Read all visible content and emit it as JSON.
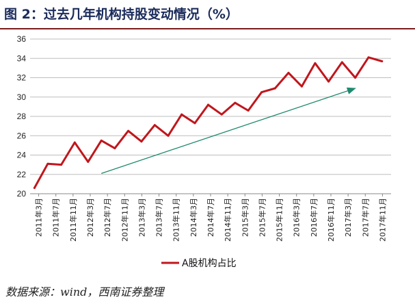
{
  "title": "图 2：过去几年机构持股变动情况（%）",
  "source": "数据来源：wind，西南证券整理",
  "colors": {
    "series": "#c0161c",
    "trend": "#1f8a6e",
    "grid": "#bdbdbd",
    "title": "#1a2a5a",
    "rule": "#7a1a1a"
  },
  "chart_data": {
    "type": "line",
    "title": "",
    "xlabel": "",
    "ylabel": "",
    "ylim": [
      20,
      36
    ],
    "yticks": [
      20,
      22,
      24,
      26,
      28,
      30,
      32,
      34,
      36
    ],
    "grid": true,
    "legend": "bottom",
    "categories": [
      "2011年3月",
      "2011年7月",
      "2011年11月",
      "2012年3月",
      "2012年7月",
      "2012年11月",
      "2013年3月",
      "2013年7月",
      "2013年11月",
      "2014年3月",
      "2014年7月",
      "2014年11月",
      "2015年3月",
      "2015年7月",
      "2015年11月",
      "2016年3月",
      "2016年7月",
      "2016年11月",
      "2017年3月",
      "2017年7月",
      "2017年11月"
    ],
    "x": [
      "2011-03-31",
      "2011-06-30",
      "2011-09-30",
      "2011-12-31",
      "2012-03-31",
      "2012-06-30",
      "2012-09-30",
      "2012-12-31",
      "2013-03-31",
      "2013-06-30",
      "2013-09-30",
      "2013-12-31",
      "2014-03-31",
      "2014-06-30",
      "2014-09-30",
      "2014-12-31",
      "2015-03-31",
      "2015-06-30",
      "2015-09-30",
      "2015-12-31",
      "2016-03-31",
      "2016-06-30",
      "2016-09-30",
      "2016-12-31",
      "2017-03-31",
      "2017-06-30",
      "2017-09-30"
    ],
    "series": [
      {
        "name": "A股机构占比",
        "values": [
          20.6,
          23.1,
          23.0,
          25.3,
          23.3,
          25.5,
          24.7,
          26.5,
          25.4,
          27.1,
          26.0,
          28.2,
          27.3,
          29.2,
          28.2,
          29.4,
          28.6,
          30.5,
          30.9,
          32.5,
          31.1,
          33.5,
          31.6,
          33.6,
          32.0,
          34.1,
          33.7
        ]
      }
    ],
    "trend_arrow": {
      "from": {
        "x": "2012-06-30",
        "y": 22.1
      },
      "to": {
        "x": "2017-03-31",
        "y": 30.9
      }
    }
  }
}
